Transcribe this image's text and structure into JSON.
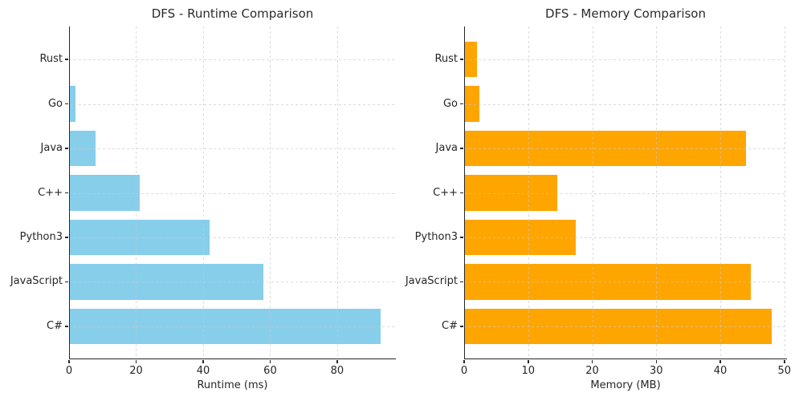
{
  "page": {
    "background": "#ffffff"
  },
  "style": {
    "text_color": "#262626",
    "spine_color": "#262626",
    "grid_color": "#cccccc",
    "grid_style": "dashed"
  },
  "chart_data": [
    {
      "type": "bar",
      "orientation": "horizontal",
      "title": "DFS - Runtime Comparison",
      "xlabel": "Runtime (ms)",
      "categories": [
        "Rust",
        "Go",
        "Java",
        "C++",
        "Python3",
        "JavaScript",
        "C#"
      ],
      "values": [
        0.3,
        2,
        8,
        21,
        42,
        58,
        93
      ],
      "xlim": [
        0,
        97.5
      ],
      "xticks": [
        0,
        20,
        40,
        60,
        80
      ],
      "bar_color": "#87CEEB",
      "grid": true,
      "legend": "none"
    },
    {
      "type": "bar",
      "orientation": "horizontal",
      "title": "DFS - Memory Comparison",
      "xlabel": "Memory (MB)",
      "categories": [
        "Rust",
        "Go",
        "Java",
        "C++",
        "Python3",
        "JavaScript",
        "C#"
      ],
      "values": [
        2,
        2.4,
        44,
        14.6,
        17.4,
        44.7,
        48
      ],
      "xlim": [
        0,
        50.4
      ],
      "xticks": [
        0,
        10,
        20,
        30,
        40,
        50
      ],
      "bar_color": "#FFA500",
      "grid": true,
      "legend": "none"
    }
  ]
}
